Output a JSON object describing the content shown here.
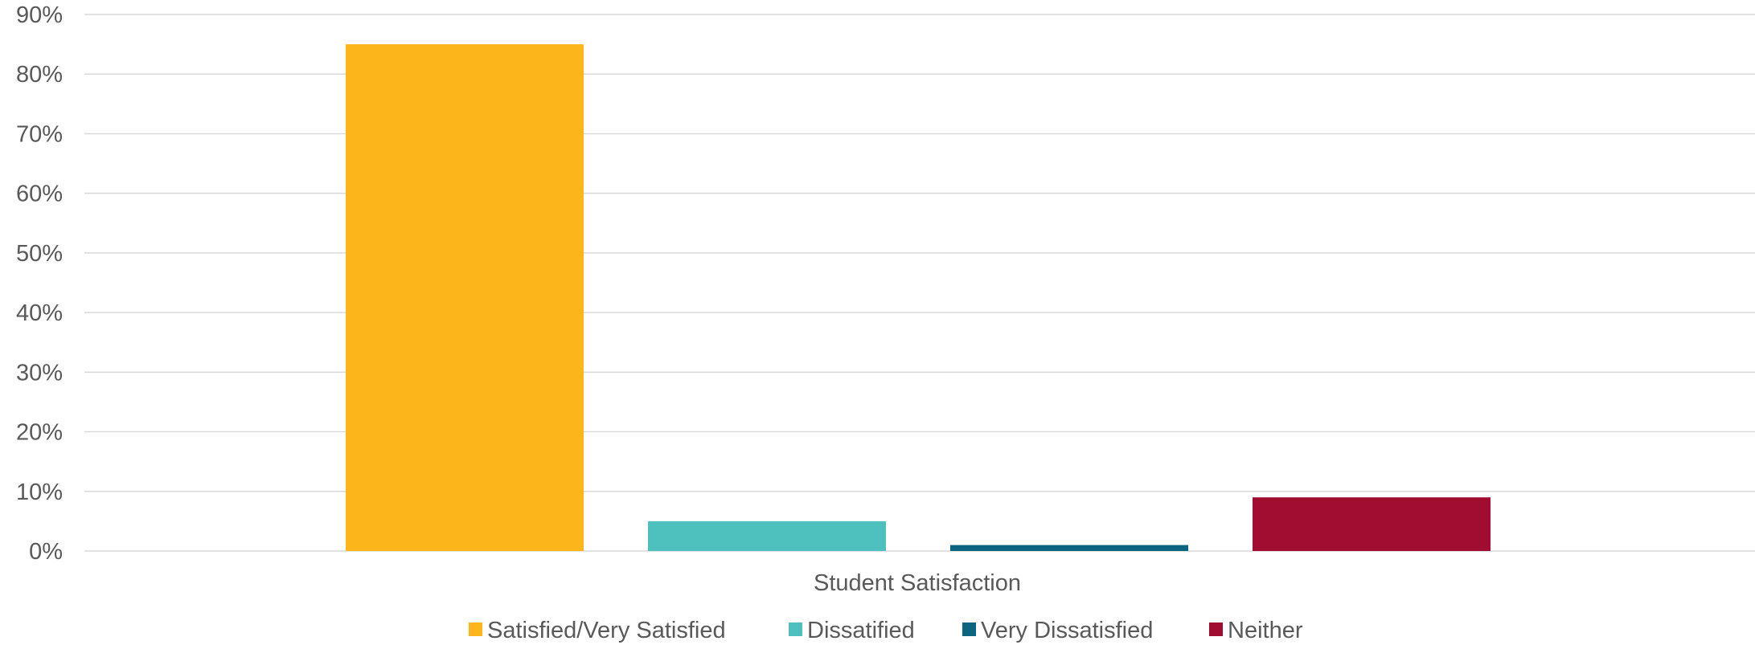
{
  "chart_data": {
    "type": "bar",
    "categories": [
      "Student Satisfaction"
    ],
    "series": [
      {
        "name": "Satisfied/Very Satisfied",
        "values": [
          85
        ],
        "color": "#FDB51C"
      },
      {
        "name": "Dissatified",
        "values": [
          5
        ],
        "color": "#4EC1BF"
      },
      {
        "name": "Very Dissatisfied",
        "values": [
          1
        ],
        "color": "#0C6580"
      },
      {
        "name": "Neither",
        "values": [
          9
        ],
        "color": "#A00D31"
      }
    ],
    "ylim": [
      0,
      90
    ],
    "yticks": [
      "0%",
      "10%",
      "20%",
      "30%",
      "40%",
      "50%",
      "60%",
      "70%",
      "80%",
      "90%"
    ],
    "grid": true,
    "legend_position": "bottom",
    "gridline_color": "#D9D9D9",
    "text_color": "#595959"
  }
}
